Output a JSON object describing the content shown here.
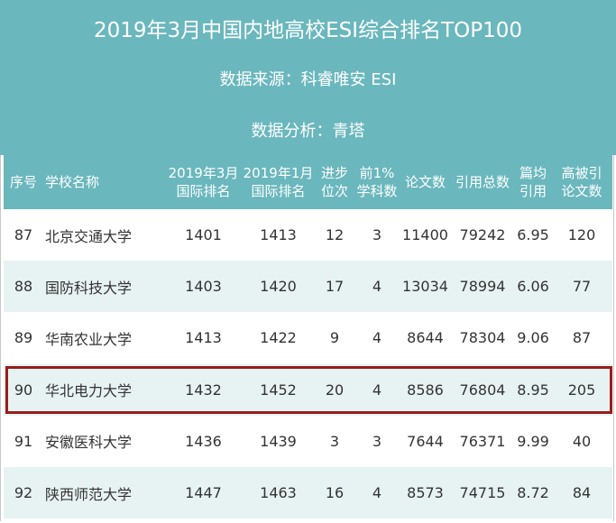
{
  "header": {
    "title": "2019年3月中国内地高校ESI综合排名TOP100",
    "source": "数据来源：科睿唯安 ESI",
    "analysis": "数据分析：青塔"
  },
  "columns": [
    {
      "line1": "序号",
      "line2": ""
    },
    {
      "line1": "学校名称",
      "line2": ""
    },
    {
      "line1": "2019年3月",
      "line2": "国际排名"
    },
    {
      "line1": "2019年1月",
      "line2": "国际排名"
    },
    {
      "line1": "进步",
      "line2": "位次"
    },
    {
      "line1": "前1%",
      "line2": "学科数"
    },
    {
      "line1": "论文数",
      "line2": ""
    },
    {
      "line1": "引用总数",
      "line2": ""
    },
    {
      "line1": "篇均",
      "line2": "引用"
    },
    {
      "line1": "高被引",
      "line2": "论文数"
    }
  ],
  "rows": [
    [
      "87",
      "北京交通大学",
      "1401",
      "1413",
      "12",
      "3",
      "11400",
      "79242",
      "6.95",
      "120"
    ],
    [
      "88",
      "国防科技大学",
      "1403",
      "1420",
      "17",
      "4",
      "13034",
      "78994",
      "6.06",
      "77"
    ],
    [
      "89",
      "华南农业大学",
      "1413",
      "1422",
      "9",
      "4",
      "8644",
      "78304",
      "9.06",
      "87"
    ],
    [
      "90",
      "华北电力大学",
      "1432",
      "1452",
      "20",
      "4",
      "8586",
      "76804",
      "8.95",
      "205"
    ],
    [
      "91",
      "安徽医科大学",
      "1436",
      "1439",
      "3",
      "3",
      "7644",
      "76371",
      "9.99",
      "40"
    ],
    [
      "92",
      "陕西师范大学",
      "1447",
      "1463",
      "16",
      "4",
      "8573",
      "74715",
      "8.72",
      "84"
    ]
  ],
  "highlighted_row": 3,
  "colors": {
    "header_bg": "#6ab7bd",
    "row_alt_bg": "#e7f3f3",
    "highlight_border": "#9b1c1c"
  }
}
